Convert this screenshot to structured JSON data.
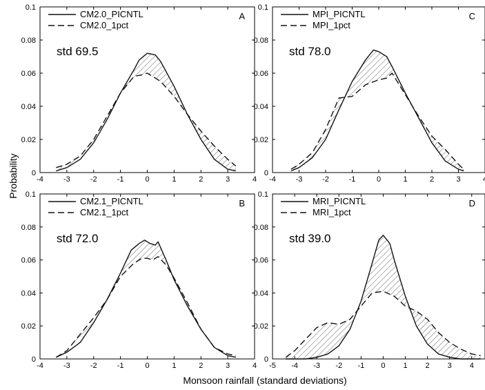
{
  "figure": {
    "ylabel": "Probability",
    "xlabel": "Monsoon rainfall (standard deviations)"
  },
  "chart_data": [
    {
      "type": "line",
      "panel": "A",
      "annotation": "std 69.5",
      "xlim": [
        -4,
        4
      ],
      "ylim": [
        0,
        0.1
      ],
      "xticks": [
        -4,
        -3,
        -2,
        -1,
        0,
        1,
        2,
        3,
        4
      ],
      "yticks": [
        0,
        0.02,
        0.04,
        0.06,
        0.08,
        0.1
      ],
      "grid": false,
      "legend_position": "top-left",
      "hatch_between_series": true,
      "series": [
        {
          "name": "CM2.0_PICNTL",
          "style": "solid",
          "x": [
            -3.4,
            -3.0,
            -2.5,
            -2.0,
            -1.5,
            -1.0,
            -0.5,
            -0.3,
            0.0,
            0.3,
            0.5,
            1.0,
            1.5,
            2.0,
            2.5,
            3.0,
            3.3
          ],
          "y": [
            0.001,
            0.003,
            0.008,
            0.018,
            0.032,
            0.048,
            0.062,
            0.068,
            0.072,
            0.071,
            0.067,
            0.052,
            0.035,
            0.02,
            0.008,
            0.002,
            0.001
          ]
        },
        {
          "name": "CM2.0_1pct",
          "style": "dashed",
          "x": [
            -3.4,
            -3.0,
            -2.5,
            -2.0,
            -1.5,
            -1.0,
            -0.5,
            -0.2,
            0.0,
            0.3,
            0.5,
            1.0,
            1.5,
            2.0,
            2.5,
            3.0,
            3.3
          ],
          "y": [
            0.003,
            0.005,
            0.01,
            0.02,
            0.034,
            0.048,
            0.058,
            0.059,
            0.06,
            0.057,
            0.055,
            0.046,
            0.035,
            0.025,
            0.016,
            0.008,
            0.004
          ]
        }
      ]
    },
    {
      "type": "line",
      "panel": "C",
      "annotation": "std 78.0",
      "xlim": [
        -4,
        4
      ],
      "ylim": [
        0,
        0.1
      ],
      "xticks": [
        -4,
        -3,
        -2,
        -1,
        0,
        1,
        2,
        3,
        4
      ],
      "yticks": [
        0,
        0.02,
        0.04,
        0.06,
        0.08,
        0.1
      ],
      "grid": false,
      "legend_position": "top-left",
      "hatch_between_series": true,
      "series": [
        {
          "name": "MPI_PICNTL",
          "style": "solid",
          "x": [
            -3.3,
            -3.0,
            -2.5,
            -2.0,
            -1.5,
            -1.0,
            -0.5,
            -0.2,
            0.0,
            0.3,
            0.5,
            1.0,
            1.5,
            2.0,
            2.5,
            3.0,
            3.2
          ],
          "y": [
            0.001,
            0.003,
            0.009,
            0.02,
            0.038,
            0.055,
            0.068,
            0.074,
            0.073,
            0.07,
            0.064,
            0.048,
            0.033,
            0.018,
            0.007,
            0.002,
            0.001
          ]
        },
        {
          "name": "MPI_1pct",
          "style": "dashed",
          "x": [
            -3.3,
            -3.0,
            -2.5,
            -2.0,
            -1.5,
            -1.0,
            -0.5,
            0.0,
            0.3,
            0.5,
            1.0,
            1.5,
            2.0,
            2.5,
            3.0,
            3.2
          ],
          "y": [
            0.002,
            0.005,
            0.012,
            0.026,
            0.045,
            0.046,
            0.053,
            0.056,
            0.057,
            0.06,
            0.047,
            0.034,
            0.022,
            0.014,
            0.005,
            0.002
          ]
        }
      ]
    },
    {
      "type": "line",
      "panel": "B",
      "annotation": "std 72.0",
      "xlim": [
        -4,
        4
      ],
      "ylim": [
        0,
        0.1
      ],
      "xticks": [
        -4,
        -3,
        -2,
        -1,
        0,
        1,
        2,
        3,
        4
      ],
      "yticks": [
        0,
        0.02,
        0.04,
        0.06,
        0.08,
        0.1
      ],
      "grid": false,
      "legend_position": "top-left",
      "hatch_between_series": true,
      "series": [
        {
          "name": "CM2.1_PICNTL",
          "style": "solid",
          "x": [
            -3.4,
            -3.0,
            -2.5,
            -2.0,
            -1.5,
            -1.0,
            -0.6,
            -0.3,
            -0.1,
            0.1,
            0.3,
            0.4,
            0.7,
            1.0,
            1.5,
            2.0,
            2.5,
            3.0,
            3.3
          ],
          "y": [
            0.001,
            0.004,
            0.01,
            0.022,
            0.036,
            0.052,
            0.066,
            0.07,
            0.072,
            0.07,
            0.069,
            0.071,
            0.06,
            0.048,
            0.032,
            0.018,
            0.007,
            0.002,
            0.001
          ]
        },
        {
          "name": "CM2.1_1pct",
          "style": "dashed",
          "x": [
            -3.4,
            -3.0,
            -2.5,
            -2.0,
            -1.5,
            -1.0,
            -0.5,
            -0.2,
            0.0,
            0.2,
            0.4,
            0.7,
            1.0,
            1.5,
            2.0,
            2.5,
            3.0,
            3.3
          ],
          "y": [
            0.001,
            0.005,
            0.015,
            0.025,
            0.036,
            0.05,
            0.058,
            0.061,
            0.061,
            0.06,
            0.062,
            0.057,
            0.049,
            0.034,
            0.018,
            0.007,
            0.003,
            0.002
          ]
        }
      ]
    },
    {
      "type": "line",
      "panel": "D",
      "annotation": "std 39.0",
      "xlim": [
        -5,
        4.6
      ],
      "ylim": [
        0,
        0.1
      ],
      "xticks": [
        -5,
        -4,
        -3,
        -2,
        -1,
        0,
        1,
        2,
        3,
        4
      ],
      "yticks": [
        0,
        0.02,
        0.04,
        0.06,
        0.08,
        0.1
      ],
      "grid": false,
      "legend_position": "top-left",
      "hatch_between_series": true,
      "series": [
        {
          "name": "MRI_PICNTL",
          "style": "solid",
          "x": [
            -4.4,
            -4.0,
            -3.5,
            -3.0,
            -2.5,
            -2.0,
            -1.5,
            -1.0,
            -0.5,
            -0.2,
            0.0,
            0.3,
            0.5,
            1.0,
            1.5,
            2.0,
            2.5,
            3.0,
            3.5,
            4.0,
            4.4
          ],
          "y": [
            0.0,
            0.0,
            0.0,
            0.001,
            0.003,
            0.008,
            0.018,
            0.035,
            0.058,
            0.072,
            0.075,
            0.07,
            0.06,
            0.038,
            0.02,
            0.009,
            0.003,
            0.001,
            0.0,
            0.0,
            0.0
          ]
        },
        {
          "name": "MRI_1pct",
          "style": "dashed",
          "x": [
            -4.4,
            -4.0,
            -3.5,
            -3.0,
            -2.5,
            -2.0,
            -1.5,
            -1.0,
            -0.5,
            0.0,
            0.5,
            1.0,
            1.5,
            2.0,
            2.5,
            3.0,
            3.5,
            4.0,
            4.4
          ],
          "y": [
            0.001,
            0.005,
            0.012,
            0.019,
            0.022,
            0.021,
            0.024,
            0.032,
            0.04,
            0.041,
            0.038,
            0.032,
            0.029,
            0.024,
            0.016,
            0.01,
            0.006,
            0.003,
            0.002
          ]
        }
      ]
    }
  ]
}
